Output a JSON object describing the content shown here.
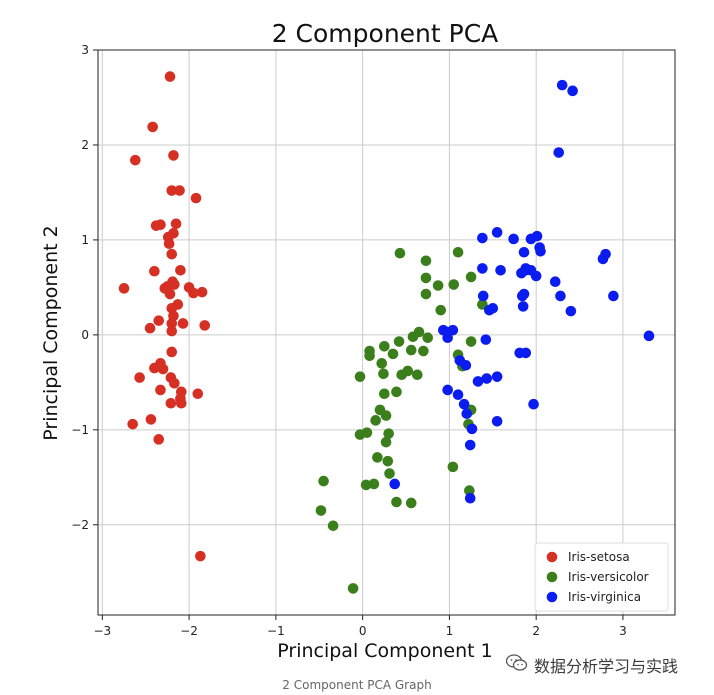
{
  "caption": "2 Component PCA Graph",
  "watermark": {
    "text": "数据分析学习与实践",
    "icon": "wechat-icon"
  },
  "colors": {
    "setosa": "#d62f24",
    "versicolor": "#3a7f1c",
    "virginica": "#0b1cf0",
    "grid": "#cccccc",
    "axis": "#222222"
  },
  "chart_data": {
    "type": "scatter",
    "title": "2 Component PCA",
    "xlabel": "Principal Component 1",
    "ylabel": "Principal Component 2",
    "xlim": [
      -3.05,
      3.6
    ],
    "ylim": [
      -2.95,
      3.0
    ],
    "xticks": [
      -3,
      -2,
      -1,
      0,
      1,
      2,
      3
    ],
    "xtick_labels": [
      "−3",
      "−2",
      "−1",
      "0",
      "1",
      "2",
      "3"
    ],
    "yticks": [
      -2,
      -1,
      0,
      1,
      2,
      3
    ],
    "ytick_labels": [
      "−2",
      "−1",
      "0",
      "1",
      "2",
      "3"
    ],
    "grid": true,
    "legend_position": "lower-right",
    "series": [
      {
        "name": "Iris-setosa",
        "color": "#d62f24",
        "points": [
          [
            -2.22,
            2.72
          ],
          [
            -2.42,
            2.19
          ],
          [
            -2.62,
            1.84
          ],
          [
            -2.18,
            1.89
          ],
          [
            -2.2,
            1.52
          ],
          [
            -2.11,
            1.52
          ],
          [
            -1.92,
            1.44
          ],
          [
            -2.38,
            1.15
          ],
          [
            -2.33,
            1.16
          ],
          [
            -2.15,
            1.17
          ],
          [
            -2.18,
            1.07
          ],
          [
            -2.24,
            1.03
          ],
          [
            -2.23,
            0.96
          ],
          [
            -2.2,
            0.85
          ],
          [
            -2.1,
            0.68
          ],
          [
            -2.4,
            0.67
          ],
          [
            -2.75,
            0.49
          ],
          [
            -2.28,
            0.49
          ],
          [
            -2.25,
            0.51
          ],
          [
            -2.17,
            0.53
          ],
          [
            -2.19,
            0.56
          ],
          [
            -2.0,
            0.5
          ],
          [
            -1.95,
            0.44
          ],
          [
            -1.85,
            0.45
          ],
          [
            -2.22,
            0.43
          ],
          [
            -2.13,
            0.32
          ],
          [
            -2.2,
            0.28
          ],
          [
            -2.18,
            0.2
          ],
          [
            -2.35,
            0.15
          ],
          [
            -2.2,
            0.12
          ],
          [
            -2.07,
            0.12
          ],
          [
            -1.82,
            0.1
          ],
          [
            -2.45,
            0.07
          ],
          [
            -2.2,
            0.04
          ],
          [
            -2.2,
            -0.18
          ],
          [
            -2.33,
            -0.3
          ],
          [
            -2.4,
            -0.35
          ],
          [
            -2.3,
            -0.36
          ],
          [
            -2.57,
            -0.45
          ],
          [
            -2.21,
            -0.45
          ],
          [
            -2.17,
            -0.51
          ],
          [
            -2.33,
            -0.58
          ],
          [
            -2.09,
            -0.6
          ],
          [
            -1.9,
            -0.62
          ],
          [
            -2.1,
            -0.67
          ],
          [
            -2.09,
            -0.72
          ],
          [
            -2.21,
            -0.72
          ],
          [
            -2.44,
            -0.89
          ],
          [
            -2.65,
            -0.94
          ],
          [
            -2.35,
            -1.1
          ],
          [
            -1.87,
            -2.33
          ]
        ]
      },
      {
        "name": "Iris-versicolor",
        "color": "#3a7f1c",
        "points": [
          [
            0.43,
            0.86
          ],
          [
            1.1,
            0.87
          ],
          [
            0.73,
            0.78
          ],
          [
            1.25,
            0.61
          ],
          [
            0.73,
            0.6
          ],
          [
            0.87,
            0.52
          ],
          [
            0.73,
            0.43
          ],
          [
            1.05,
            0.53
          ],
          [
            0.9,
            0.26
          ],
          [
            1.38,
            0.32
          ],
          [
            0.65,
            0.03
          ],
          [
            0.58,
            -0.02
          ],
          [
            0.75,
            -0.03
          ],
          [
            0.42,
            -0.07
          ],
          [
            1.25,
            -0.07
          ],
          [
            0.25,
            -0.12
          ],
          [
            0.56,
            -0.16
          ],
          [
            0.7,
            -0.17
          ],
          [
            0.08,
            -0.17
          ],
          [
            0.35,
            -0.2
          ],
          [
            0.08,
            -0.22
          ],
          [
            1.1,
            -0.21
          ],
          [
            0.22,
            -0.3
          ],
          [
            1.15,
            -0.33
          ],
          [
            0.52,
            -0.38
          ],
          [
            0.24,
            -0.41
          ],
          [
            0.45,
            -0.42
          ],
          [
            -0.03,
            -0.44
          ],
          [
            0.63,
            -0.42
          ],
          [
            0.39,
            -0.6
          ],
          [
            0.25,
            -0.62
          ],
          [
            0.2,
            -0.79
          ],
          [
            1.25,
            -0.79
          ],
          [
            0.27,
            -0.85
          ],
          [
            0.15,
            -0.9
          ],
          [
            1.22,
            -0.94
          ],
          [
            0.05,
            -1.03
          ],
          [
            -0.03,
            -1.05
          ],
          [
            0.3,
            -1.04
          ],
          [
            0.27,
            -1.13
          ],
          [
            0.17,
            -1.29
          ],
          [
            0.29,
            -1.33
          ],
          [
            0.31,
            -1.46
          ],
          [
            1.04,
            -1.39
          ],
          [
            -0.45,
            -1.54
          ],
          [
            0.04,
            -1.58
          ],
          [
            0.13,
            -1.57
          ],
          [
            0.39,
            -1.76
          ],
          [
            0.56,
            -1.77
          ],
          [
            1.23,
            -1.64
          ],
          [
            -0.48,
            -1.85
          ],
          [
            -0.34,
            -2.01
          ],
          [
            -0.11,
            -2.67
          ]
        ]
      },
      {
        "name": "Iris-virginica",
        "color": "#0b1cf0",
        "points": [
          [
            2.3,
            2.63
          ],
          [
            2.42,
            2.57
          ],
          [
            2.26,
            1.92
          ],
          [
            1.55,
            1.08
          ],
          [
            1.74,
            1.01
          ],
          [
            1.94,
            1.01
          ],
          [
            2.01,
            1.04
          ],
          [
            1.38,
            1.02
          ],
          [
            2.04,
            0.92
          ],
          [
            2.05,
            0.88
          ],
          [
            1.86,
            0.87
          ],
          [
            2.8,
            0.85
          ],
          [
            2.77,
            0.8
          ],
          [
            1.38,
            0.7
          ],
          [
            1.59,
            0.68
          ],
          [
            1.88,
            0.7
          ],
          [
            1.88,
            0.68
          ],
          [
            1.94,
            0.68
          ],
          [
            1.83,
            0.65
          ],
          [
            2.0,
            0.62
          ],
          [
            2.22,
            0.56
          ],
          [
            1.39,
            0.41
          ],
          [
            1.86,
            0.43
          ],
          [
            1.84,
            0.41
          ],
          [
            2.28,
            0.41
          ],
          [
            2.89,
            0.41
          ],
          [
            1.5,
            0.28
          ],
          [
            1.46,
            0.26
          ],
          [
            1.85,
            0.3
          ],
          [
            2.4,
            0.25
          ],
          [
            0.93,
            0.05
          ],
          [
            0.97,
            0.03
          ],
          [
            1.04,
            0.05
          ],
          [
            3.3,
            -0.01
          ],
          [
            0.98,
            -0.03
          ],
          [
            1.42,
            -0.05
          ],
          [
            1.81,
            -0.19
          ],
          [
            1.88,
            -0.19
          ],
          [
            1.12,
            -0.27
          ],
          [
            1.19,
            -0.32
          ],
          [
            1.55,
            -0.44
          ],
          [
            1.43,
            -0.46
          ],
          [
            1.33,
            -0.49
          ],
          [
            0.98,
            -0.58
          ],
          [
            1.1,
            -0.63
          ],
          [
            1.97,
            -0.73
          ],
          [
            1.17,
            -0.73
          ],
          [
            1.2,
            -0.83
          ],
          [
            1.55,
            -0.91
          ],
          [
            1.26,
            -0.99
          ],
          [
            1.24,
            -1.16
          ],
          [
            0.37,
            -1.57
          ],
          [
            1.24,
            -1.72
          ]
        ]
      }
    ]
  }
}
